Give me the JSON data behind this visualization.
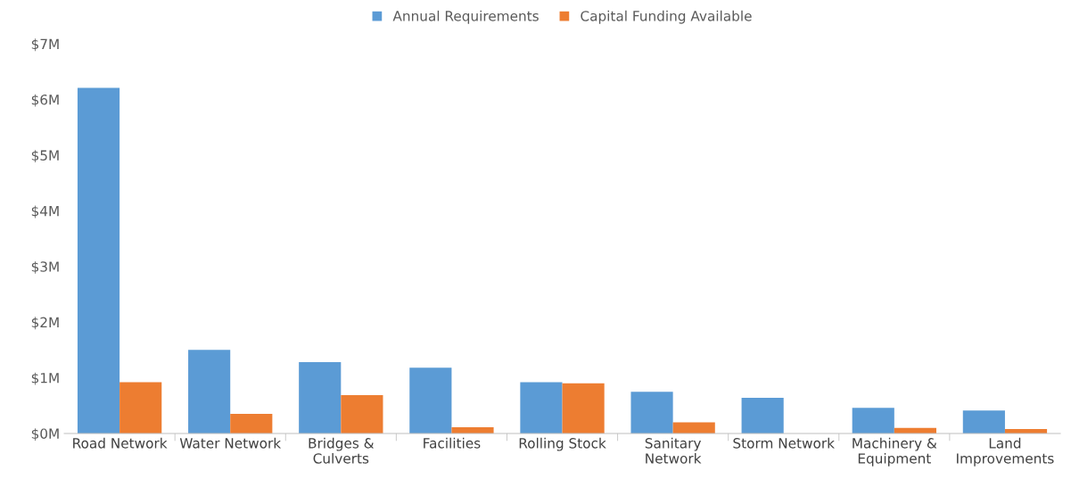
{
  "chart_data": {
    "type": "bar",
    "categories": [
      "Road Network",
      "Water Network",
      "Bridges &\nCulverts",
      "Facilities",
      "Rolling Stock",
      "Sanitary\nNetwork",
      "Storm Network",
      "Machinery &\nEquipment",
      "Land\nImprovements"
    ],
    "series": [
      {
        "name": "Annual Requirements",
        "color": "#5b9bd5",
        "values": [
          6.21,
          1.5,
          1.28,
          1.18,
          0.92,
          0.75,
          0.64,
          0.46,
          0.41
        ]
      },
      {
        "name": "Capital Funding Available",
        "color": "#ed7d31",
        "values": [
          0.92,
          0.35,
          0.69,
          0.11,
          0.9,
          0.2,
          0,
          0.1,
          0.08
        ]
      }
    ],
    "ylim": [
      0,
      7
    ],
    "yticks": [
      {
        "value": 0,
        "label": "$0M"
      },
      {
        "value": 1,
        "label": "$1M"
      },
      {
        "value": 2,
        "label": "$2M"
      },
      {
        "value": 3,
        "label": "$3M"
      },
      {
        "value": 4,
        "label": "$4M"
      },
      {
        "value": 5,
        "label": "$5M"
      },
      {
        "value": 6,
        "label": "$6M"
      },
      {
        "value": 7,
        "label": "$7M"
      }
    ],
    "legend": "top",
    "grid": false
  }
}
